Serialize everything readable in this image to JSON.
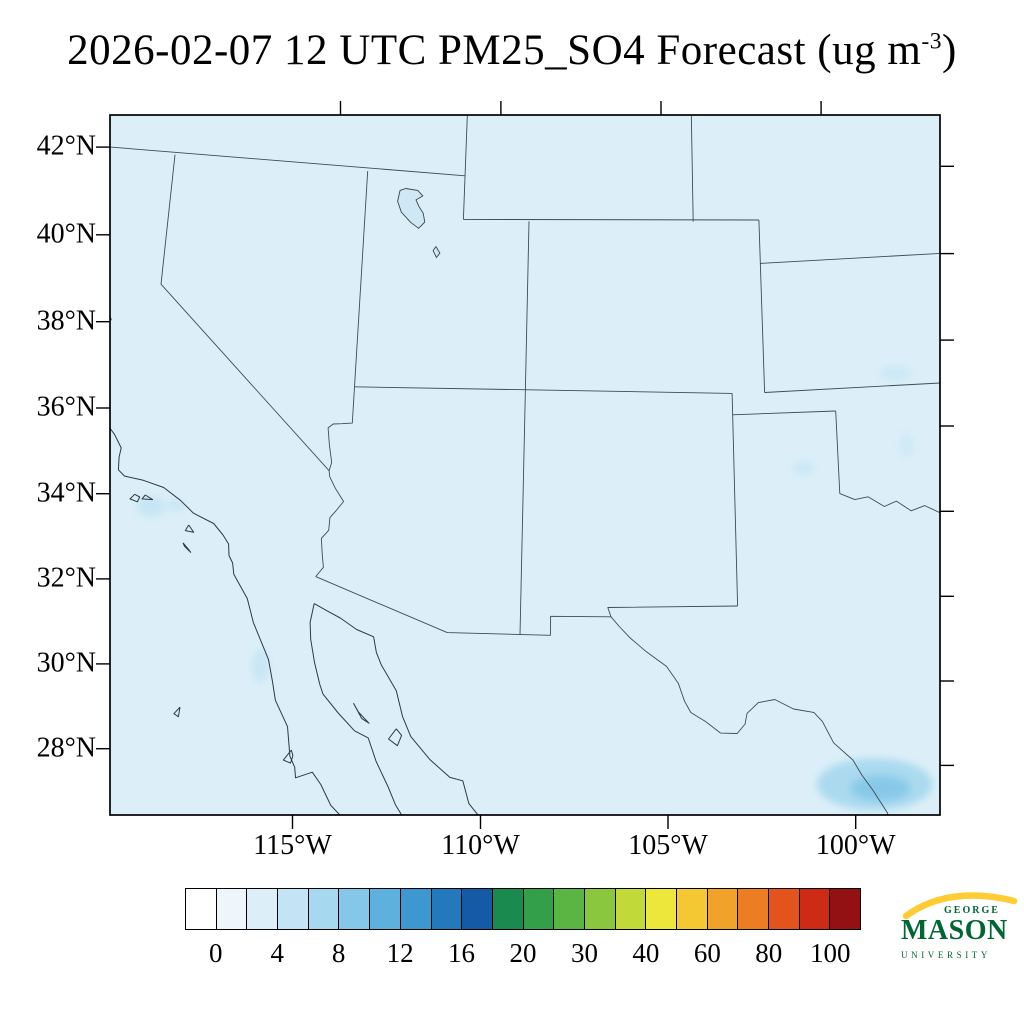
{
  "title": {
    "prefix": "2026-02-07 12 UTC PM25_SO4 Forecast (ug m",
    "exponent": "-3",
    "suffix": ")"
  },
  "axes": {
    "lat_labels": [
      {
        "label": "42°N",
        "value": 42
      },
      {
        "label": "40°N",
        "value": 40
      },
      {
        "label": "38°N",
        "value": 38
      },
      {
        "label": "36°N",
        "value": 36
      },
      {
        "label": "34°N",
        "value": 34
      },
      {
        "label": "32°N",
        "value": 32
      },
      {
        "label": "30°N",
        "value": 30
      },
      {
        "label": "28°N",
        "value": 28
      }
    ],
    "lon_labels": [
      {
        "label": "115°W",
        "value": -115
      },
      {
        "label": "110°W",
        "value": -110
      },
      {
        "label": "105°W",
        "value": -105
      },
      {
        "label": "100°W",
        "value": -100
      }
    ]
  },
  "colorbar": {
    "labels": [
      "0",
      "4",
      "8",
      "12",
      "16",
      "20",
      "30",
      "40",
      "60",
      "80",
      "100"
    ],
    "colors": [
      "#ffffff",
      "#eef6fb",
      "#dceff8",
      "#c3e4f4",
      "#a6d8ef",
      "#84c7e8",
      "#5eb1dd",
      "#3d98d0",
      "#2379bc",
      "#155aa4",
      "#1b8a4f",
      "#33a049",
      "#5ab543",
      "#8bc73e",
      "#c2da39",
      "#eee73b",
      "#f4c832",
      "#f1a22b",
      "#ec7d23",
      "#e3541c",
      "#ce2b17",
      "#931013"
    ]
  },
  "logo": {
    "george": "GEORGE",
    "mason": "MASON",
    "university": "UNIVERSITY",
    "green_hex": "#006633",
    "gold_hex": "#FFCC33"
  },
  "chart_data": {
    "type": "heatmap",
    "title": "2026-02-07 12 UTC PM25_SO4 Forecast (ug m-3)",
    "variable": "PM25_SO4",
    "units": "ug m-3",
    "forecast_valid": "2026-02-07 12 UTC",
    "region": "Southwestern United States and northern Mexico (Lambert conformal map)",
    "lat_ticks_deg_n": [
      42,
      40,
      38,
      36,
      34,
      32,
      30,
      28
    ],
    "lon_ticks_deg_w": [
      115,
      110,
      105,
      100
    ],
    "colorbar_levels": [
      0,
      2,
      4,
      6,
      8,
      10,
      12,
      14,
      16,
      18,
      20,
      25,
      30,
      35,
      40,
      50,
      60,
      70,
      80,
      90,
      100
    ],
    "colorbar_labeled_levels": [
      0,
      4,
      8,
      12,
      16,
      20,
      30,
      40,
      60,
      80,
      100
    ],
    "legend_position": "bottom",
    "grid": false,
    "field_summary": {
      "background_range_ug_m3": [
        0,
        2
      ],
      "hotspots": [
        {
          "location": "south Texas / Mexico border along Rio Grande (~27.7N, 99.3W)",
          "approx_value_ug_m3": "2-6"
        },
        {
          "location": "Southern California coastal waters (~33.9N, 119.5W)",
          "approx_value_ug_m3": "2-4"
        },
        {
          "location": "Baja California Pacific coast (~30N, 116W)",
          "approx_value_ug_m3": "2-4"
        },
        {
          "location": "Texas panhandle (~35.2N, 101W)",
          "approx_value_ug_m3": "~2"
        }
      ]
    }
  }
}
